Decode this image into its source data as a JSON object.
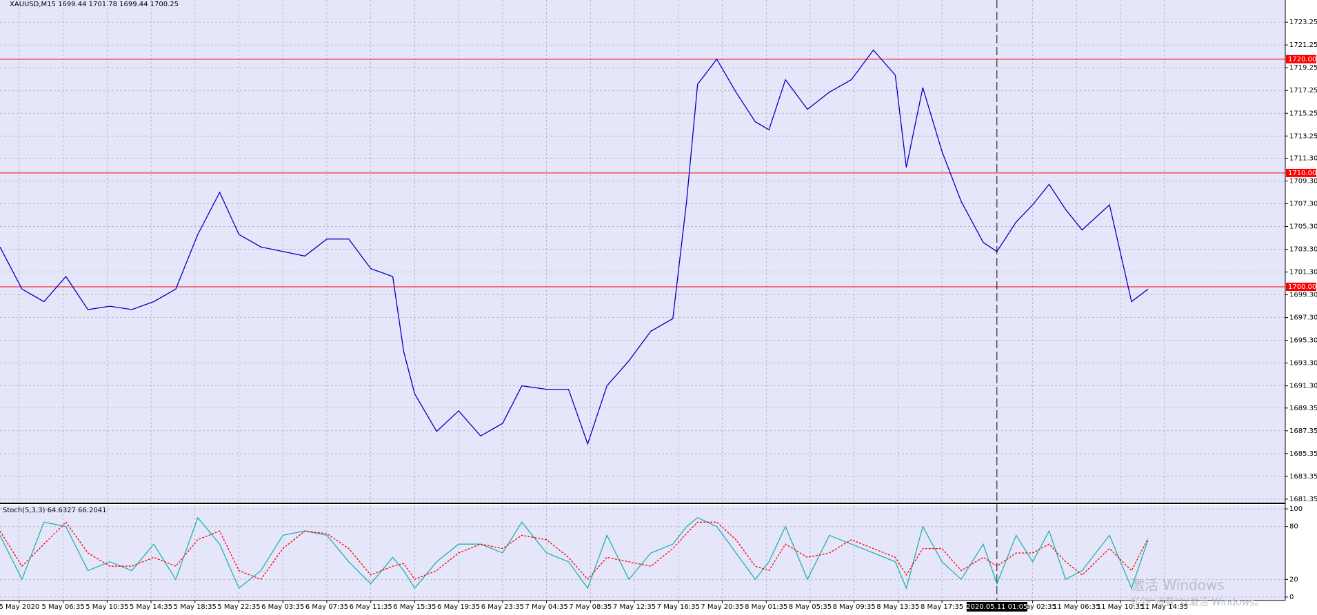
{
  "chart_data": [
    {
      "type": "line",
      "title": "XAUUSD,M15  1699.44 1701.78 1699.44 1700.25",
      "x": [
        0,
        8,
        16,
        24,
        32,
        40,
        48,
        56,
        64,
        72,
        80,
        87,
        95,
        103,
        111,
        119,
        127,
        135,
        143,
        147,
        151,
        159,
        167,
        175,
        183,
        190,
        199,
        207,
        214,
        221,
        229,
        237,
        245,
        250,
        254,
        261,
        268,
        275,
        280,
        286,
        294,
        302,
        310,
        318,
        326,
        330,
        336,
        343,
        350,
        358,
        363,
        370,
        376,
        382,
        388,
        394,
        404,
        412,
        418
      ],
      "xlim": [
        0,
        468
      ],
      "xticks": [
        {
          "value": 7,
          "label": "5 May 2020"
        },
        {
          "value": 23,
          "label": "5 May 06:35"
        },
        {
          "value": 39,
          "label": "5 May 10:35"
        },
        {
          "value": 55,
          "label": "5 May 14:35"
        },
        {
          "value": 71,
          "label": "5 May 18:35"
        },
        {
          "value": 87,
          "label": "5 May 22:35"
        },
        {
          "value": 103,
          "label": "6 May 03:35"
        },
        {
          "value": 119,
          "label": "6 May 07:35"
        },
        {
          "value": 135,
          "label": "6 May 11:35"
        },
        {
          "value": 151,
          "label": "6 May 15:35"
        },
        {
          "value": 167,
          "label": "6 May 19:35"
        },
        {
          "value": 183,
          "label": "6 May 23:35"
        },
        {
          "value": 199,
          "label": "7 May 04:35"
        },
        {
          "value": 215,
          "label": "7 May 08:35"
        },
        {
          "value": 231,
          "label": "7 May 12:35"
        },
        {
          "value": 247,
          "label": "7 May 16:35"
        },
        {
          "value": 263,
          "label": "7 May 20:35"
        },
        {
          "value": 279,
          "label": "8 May 01:35"
        },
        {
          "value": 295,
          "label": "8 May 05:35"
        },
        {
          "value": 311,
          "label": "8 May 09:35"
        },
        {
          "value": 327,
          "label": "8 May 13:35"
        },
        {
          "value": 343,
          "label": "8 May 17:35"
        },
        {
          "value": 376,
          "label": "11 May 02:35"
        },
        {
          "value": 392,
          "label": "11 May 06:35"
        },
        {
          "value": 408,
          "label": "11 May 10:35"
        },
        {
          "value": 424,
          "label": "11 May 14:35"
        }
      ],
      "cursor": {
        "value": 363,
        "label": "2020.05.11 01:05"
      },
      "ylim": [
        1681.1,
        1725.2
      ],
      "yticks": [
        1723.25,
        1721.25,
        1719.25,
        1717.25,
        1715.25,
        1713.25,
        {
          "value": 1711.3,
          "label": "1711.30"
        },
        {
          "value": 1709.3,
          "label": "1709.30"
        },
        {
          "value": 1707.3,
          "label": "1707.30"
        },
        {
          "value": 1705.3,
          "label": "1705.30"
        },
        {
          "value": 1703.3,
          "label": "1703.30"
        },
        {
          "value": 1701.3,
          "label": "1701.30"
        },
        {
          "value": 1699.3,
          "label": "1699.30"
        },
        {
          "value": 1697.3,
          "label": "1697.30"
        },
        {
          "value": 1695.3,
          "label": "1695.30"
        },
        {
          "value": 1693.3,
          "label": "1693.30"
        },
        {
          "value": 1691.3,
          "label": "1691.30"
        },
        1689.35,
        1687.35,
        1685.35,
        1683.35,
        1681.35
      ],
      "levels": [
        {
          "value": 1720,
          "label": "1720.00"
        },
        {
          "value": 1710,
          "label": "1710.00"
        },
        {
          "value": 1700,
          "label": "1700.00"
        }
      ],
      "level_color": "#ff0000",
      "grid": true,
      "series": [
        {
          "color": "#0000c0",
          "values": [
            1703.5,
            1699.8,
            1698.7,
            1700.9,
            1698.0,
            1698.3,
            1698.0,
            1698.7,
            1699.8,
            1704.6,
            1708.3,
            1704.6,
            1703.5,
            1703.1,
            1702.7,
            1704.2,
            1704.2,
            1701.6,
            1700.9,
            1694.3,
            1690.6,
            1687.3,
            1689.1,
            1686.9,
            1688.0,
            1691.3,
            1691.0,
            1691.0,
            1686.2,
            1691.3,
            1693.5,
            1696.1,
            1697.2,
            1707.5,
            1717.8,
            1720.0,
            1717.1,
            1714.5,
            1713.8,
            1718.2,
            1715.6,
            1717.1,
            1718.2,
            1720.8,
            1718.6,
            1710.5,
            1717.5,
            1711.9,
            1707.5,
            1703.9,
            1703.1,
            1705.7,
            1707.2,
            1709.0,
            1706.8,
            1705.0,
            1707.2,
            1698.7,
            1699.8
          ]
        }
      ]
    },
    {
      "type": "line",
      "title": "Stoch(5,3,3) 64.6327 66.2041",
      "x": [
        0,
        8,
        16,
        24,
        32,
        40,
        48,
        56,
        64,
        72,
        80,
        87,
        95,
        103,
        111,
        119,
        127,
        135,
        143,
        147,
        151,
        159,
        167,
        175,
        183,
        190,
        199,
        207,
        214,
        221,
        229,
        237,
        245,
        250,
        254,
        261,
        268,
        275,
        280,
        286,
        294,
        302,
        310,
        318,
        326,
        330,
        336,
        343,
        350,
        358,
        363,
        370,
        376,
        382,
        388,
        394,
        404,
        412,
        418
      ],
      "xlim": [
        0,
        468
      ],
      "ylim": [
        -4,
        104
      ],
      "yticks": [
        100,
        80,
        20,
        0
      ],
      "series": [
        {
          "color": "#20b2aa",
          "values": [
            70,
            20,
            85,
            80,
            30,
            40,
            30,
            60,
            20,
            90,
            60,
            10,
            30,
            70,
            75,
            70,
            40,
            15,
            45,
            30,
            10,
            40,
            60,
            60,
            50,
            85,
            50,
            40,
            10,
            70,
            20,
            50,
            60,
            80,
            90,
            80,
            50,
            20,
            40,
            80,
            20,
            70,
            60,
            50,
            40,
            10,
            80,
            40,
            20,
            60,
            15,
            70,
            40,
            75,
            20,
            30,
            70,
            10,
            64.6327
          ]
        },
        {
          "color": "#ff0000",
          "dashed": true,
          "values": [
            75,
            35,
            60,
            85,
            50,
            35,
            35,
            45,
            35,
            65,
            75,
            30,
            20,
            55,
            75,
            72,
            55,
            25,
            35,
            38,
            20,
            30,
            50,
            60,
            55,
            70,
            65,
            45,
            20,
            45,
            40,
            35,
            55,
            72,
            85,
            85,
            65,
            35,
            30,
            60,
            45,
            50,
            65,
            55,
            45,
            25,
            55,
            55,
            30,
            45,
            35,
            50,
            50,
            60,
            40,
            25,
            55,
            30,
            66.2041
          ]
        }
      ]
    }
  ],
  "watermark": {
    "title": "激活 Windows",
    "text": "转到“设置”以激活 Windows。"
  }
}
